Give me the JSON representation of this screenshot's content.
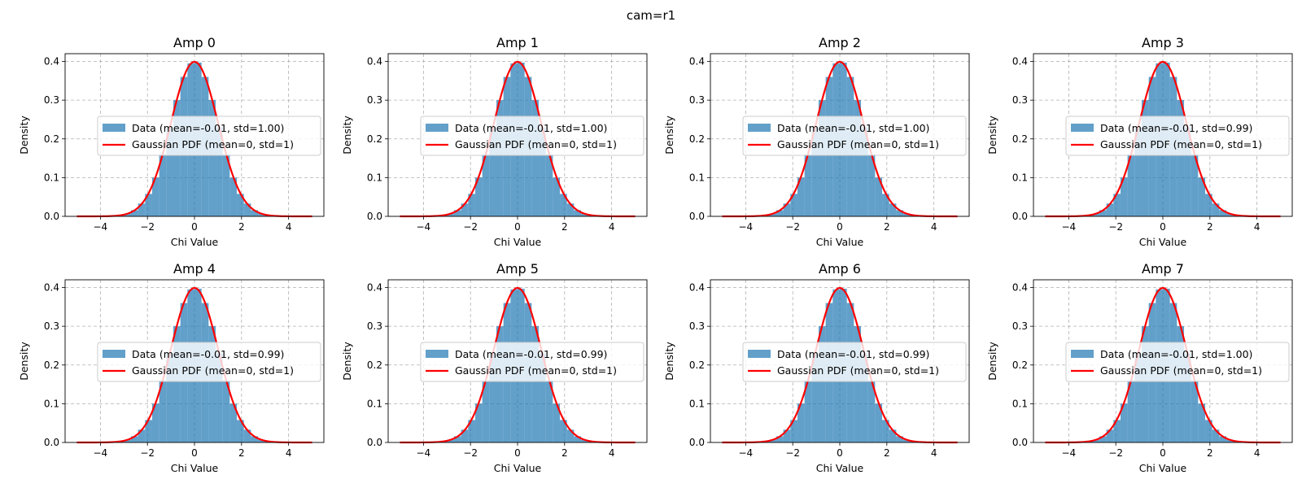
{
  "figure": {
    "title": "cam=r1"
  },
  "colors": {
    "histogram": "#1f77b4",
    "gaussian": "#ff0000",
    "grid": "#b0b0b0"
  },
  "chart_data": [
    {
      "type": "bar",
      "title": "Amp 0",
      "xlabel": "Chi Value",
      "ylabel": "Density",
      "xlim": [
        -5.5,
        5.5
      ],
      "ylim": [
        0,
        0.42
      ],
      "xticks": [
        -4,
        -2,
        0,
        2,
        4
      ],
      "yticks": [
        0.0,
        0.1,
        0.2,
        0.3,
        0.4
      ],
      "grid": true,
      "legend_position": "center right",
      "legend": [
        "Data (mean=-0.01, std=1.00)",
        "Gaussian PDF (mean=0, std=1)"
      ],
      "series": [
        {
          "name": "Data (mean=-0.01, std=1.00)",
          "type": "histogram",
          "bin_width": 0.3,
          "x": [
            -3.15,
            -2.85,
            -2.55,
            -2.25,
            -1.95,
            -1.65,
            -1.35,
            -1.05,
            -0.75,
            -0.45,
            -0.15,
            0.15,
            0.45,
            0.75,
            1.05,
            1.35,
            1.65,
            1.95,
            2.25,
            2.55,
            2.85,
            3.15
          ],
          "values": [
            0.003,
            0.007,
            0.016,
            0.033,
            0.058,
            0.1,
            0.16,
            0.23,
            0.3,
            0.36,
            0.395,
            0.397,
            0.36,
            0.3,
            0.23,
            0.16,
            0.1,
            0.058,
            0.033,
            0.016,
            0.007,
            0.003
          ]
        },
        {
          "name": "Gaussian PDF (mean=0, std=1)",
          "type": "line",
          "mean": 0,
          "std": 1,
          "x_range": [
            -5,
            5
          ]
        }
      ]
    },
    {
      "type": "bar",
      "title": "Amp 1",
      "xlabel": "Chi Value",
      "ylabel": "Density",
      "xlim": [
        -5.5,
        5.5
      ],
      "ylim": [
        0,
        0.42
      ],
      "xticks": [
        -4,
        -2,
        0,
        2,
        4
      ],
      "yticks": [
        0.0,
        0.1,
        0.2,
        0.3,
        0.4
      ],
      "grid": true,
      "legend_position": "center right",
      "legend": [
        "Data (mean=-0.01, std=1.00)",
        "Gaussian PDF (mean=0, std=1)"
      ],
      "series": [
        {
          "name": "Data (mean=-0.01, std=1.00)",
          "type": "histogram",
          "bin_width": 0.3,
          "x": [
            -3.15,
            -2.85,
            -2.55,
            -2.25,
            -1.95,
            -1.65,
            -1.35,
            -1.05,
            -0.75,
            -0.45,
            -0.15,
            0.15,
            0.45,
            0.75,
            1.05,
            1.35,
            1.65,
            1.95,
            2.25,
            2.55,
            2.85,
            3.15
          ],
          "values": [
            0.003,
            0.007,
            0.016,
            0.033,
            0.058,
            0.1,
            0.16,
            0.23,
            0.3,
            0.36,
            0.395,
            0.397,
            0.36,
            0.3,
            0.23,
            0.16,
            0.1,
            0.058,
            0.033,
            0.016,
            0.007,
            0.003
          ]
        },
        {
          "name": "Gaussian PDF (mean=0, std=1)",
          "type": "line",
          "mean": 0,
          "std": 1,
          "x_range": [
            -5,
            5
          ]
        }
      ]
    },
    {
      "type": "bar",
      "title": "Amp 2",
      "xlabel": "Chi Value",
      "ylabel": "Density",
      "xlim": [
        -5.5,
        5.5
      ],
      "ylim": [
        0,
        0.42
      ],
      "xticks": [
        -4,
        -2,
        0,
        2,
        4
      ],
      "yticks": [
        0.0,
        0.1,
        0.2,
        0.3,
        0.4
      ],
      "grid": true,
      "legend_position": "center right",
      "legend": [
        "Data (mean=-0.01, std=1.00)",
        "Gaussian PDF (mean=0, std=1)"
      ],
      "series": [
        {
          "name": "Data (mean=-0.01, std=1.00)",
          "type": "histogram",
          "bin_width": 0.3,
          "x": [
            -3.15,
            -2.85,
            -2.55,
            -2.25,
            -1.95,
            -1.65,
            -1.35,
            -1.05,
            -0.75,
            -0.45,
            -0.15,
            0.15,
            0.45,
            0.75,
            1.05,
            1.35,
            1.65,
            1.95,
            2.25,
            2.55,
            2.85,
            3.15
          ],
          "values": [
            0.003,
            0.007,
            0.016,
            0.033,
            0.058,
            0.1,
            0.16,
            0.23,
            0.3,
            0.36,
            0.395,
            0.397,
            0.36,
            0.3,
            0.23,
            0.16,
            0.1,
            0.058,
            0.033,
            0.016,
            0.007,
            0.003
          ]
        },
        {
          "name": "Gaussian PDF (mean=0, std=1)",
          "type": "line",
          "mean": 0,
          "std": 1,
          "x_range": [
            -5,
            5
          ]
        }
      ]
    },
    {
      "type": "bar",
      "title": "Amp 3",
      "xlabel": "Chi Value",
      "ylabel": "Density",
      "xlim": [
        -5.5,
        5.5
      ],
      "ylim": [
        0,
        0.42
      ],
      "xticks": [
        -4,
        -2,
        0,
        2,
        4
      ],
      "yticks": [
        0.0,
        0.1,
        0.2,
        0.3,
        0.4
      ],
      "grid": true,
      "legend_position": "center right",
      "legend": [
        "Data (mean=-0.01, std=0.99)",
        "Gaussian PDF (mean=0, std=1)"
      ],
      "series": [
        {
          "name": "Data (mean=-0.01, std=0.99)",
          "type": "histogram",
          "bin_width": 0.3,
          "x": [
            -3.15,
            -2.85,
            -2.55,
            -2.25,
            -1.95,
            -1.65,
            -1.35,
            -1.05,
            -0.75,
            -0.45,
            -0.15,
            0.15,
            0.45,
            0.75,
            1.05,
            1.35,
            1.65,
            1.95,
            2.25,
            2.55,
            2.85,
            3.15
          ],
          "values": [
            0.003,
            0.007,
            0.016,
            0.033,
            0.058,
            0.1,
            0.16,
            0.23,
            0.3,
            0.36,
            0.395,
            0.397,
            0.36,
            0.3,
            0.23,
            0.16,
            0.1,
            0.058,
            0.033,
            0.016,
            0.007,
            0.003
          ]
        },
        {
          "name": "Gaussian PDF (mean=0, std=1)",
          "type": "line",
          "mean": 0,
          "std": 1,
          "x_range": [
            -5,
            5
          ]
        }
      ]
    },
    {
      "type": "bar",
      "title": "Amp 4",
      "xlabel": "Chi Value",
      "ylabel": "Density",
      "xlim": [
        -5.5,
        5.5
      ],
      "ylim": [
        0,
        0.42
      ],
      "xticks": [
        -4,
        -2,
        0,
        2,
        4
      ],
      "yticks": [
        0.0,
        0.1,
        0.2,
        0.3,
        0.4
      ],
      "grid": true,
      "legend_position": "center right",
      "legend": [
        "Data (mean=-0.01, std=0.99)",
        "Gaussian PDF (mean=0, std=1)"
      ],
      "series": [
        {
          "name": "Data (mean=-0.01, std=0.99)",
          "type": "histogram",
          "bin_width": 0.3,
          "x": [
            -3.15,
            -2.85,
            -2.55,
            -2.25,
            -1.95,
            -1.65,
            -1.35,
            -1.05,
            -0.75,
            -0.45,
            -0.15,
            0.15,
            0.45,
            0.75,
            1.05,
            1.35,
            1.65,
            1.95,
            2.25,
            2.55,
            2.85,
            3.15
          ],
          "values": [
            0.003,
            0.007,
            0.016,
            0.033,
            0.058,
            0.1,
            0.16,
            0.23,
            0.3,
            0.36,
            0.395,
            0.397,
            0.36,
            0.3,
            0.23,
            0.16,
            0.1,
            0.058,
            0.033,
            0.016,
            0.007,
            0.003
          ]
        },
        {
          "name": "Gaussian PDF (mean=0, std=1)",
          "type": "line",
          "mean": 0,
          "std": 1,
          "x_range": [
            -5,
            5
          ]
        }
      ]
    },
    {
      "type": "bar",
      "title": "Amp 5",
      "xlabel": "Chi Value",
      "ylabel": "Density",
      "xlim": [
        -5.5,
        5.5
      ],
      "ylim": [
        0,
        0.42
      ],
      "xticks": [
        -4,
        -2,
        0,
        2,
        4
      ],
      "yticks": [
        0.0,
        0.1,
        0.2,
        0.3,
        0.4
      ],
      "grid": true,
      "legend_position": "center right",
      "legend": [
        "Data (mean=-0.01, std=0.99)",
        "Gaussian PDF (mean=0, std=1)"
      ],
      "series": [
        {
          "name": "Data (mean=-0.01, std=0.99)",
          "type": "histogram",
          "bin_width": 0.3,
          "x": [
            -3.15,
            -2.85,
            -2.55,
            -2.25,
            -1.95,
            -1.65,
            -1.35,
            -1.05,
            -0.75,
            -0.45,
            -0.15,
            0.15,
            0.45,
            0.75,
            1.05,
            1.35,
            1.65,
            1.95,
            2.25,
            2.55,
            2.85,
            3.15
          ],
          "values": [
            0.003,
            0.007,
            0.016,
            0.033,
            0.058,
            0.1,
            0.16,
            0.23,
            0.3,
            0.36,
            0.395,
            0.397,
            0.36,
            0.3,
            0.23,
            0.16,
            0.1,
            0.058,
            0.033,
            0.016,
            0.007,
            0.003
          ]
        },
        {
          "name": "Gaussian PDF (mean=0, std=1)",
          "type": "line",
          "mean": 0,
          "std": 1,
          "x_range": [
            -5,
            5
          ]
        }
      ]
    },
    {
      "type": "bar",
      "title": "Amp 6",
      "xlabel": "Chi Value",
      "ylabel": "Density",
      "xlim": [
        -5.5,
        5.5
      ],
      "ylim": [
        0,
        0.42
      ],
      "xticks": [
        -4,
        -2,
        0,
        2,
        4
      ],
      "yticks": [
        0.0,
        0.1,
        0.2,
        0.3,
        0.4
      ],
      "grid": true,
      "legend_position": "center right",
      "legend": [
        "Data (mean=-0.01, std=0.99)",
        "Gaussian PDF (mean=0, std=1)"
      ],
      "series": [
        {
          "name": "Data (mean=-0.01, std=0.99)",
          "type": "histogram",
          "bin_width": 0.3,
          "x": [
            -3.15,
            -2.85,
            -2.55,
            -2.25,
            -1.95,
            -1.65,
            -1.35,
            -1.05,
            -0.75,
            -0.45,
            -0.15,
            0.15,
            0.45,
            0.75,
            1.05,
            1.35,
            1.65,
            1.95,
            2.25,
            2.55,
            2.85,
            3.15
          ],
          "values": [
            0.003,
            0.007,
            0.016,
            0.033,
            0.058,
            0.1,
            0.16,
            0.23,
            0.3,
            0.36,
            0.395,
            0.397,
            0.36,
            0.3,
            0.23,
            0.16,
            0.1,
            0.058,
            0.033,
            0.016,
            0.007,
            0.003
          ]
        },
        {
          "name": "Gaussian PDF (mean=0, std=1)",
          "type": "line",
          "mean": 0,
          "std": 1,
          "x_range": [
            -5,
            5
          ]
        }
      ]
    },
    {
      "type": "bar",
      "title": "Amp 7",
      "xlabel": "Chi Value",
      "ylabel": "Density",
      "xlim": [
        -5.5,
        5.5
      ],
      "ylim": [
        0,
        0.42
      ],
      "xticks": [
        -4,
        -2,
        0,
        2,
        4
      ],
      "yticks": [
        0.0,
        0.1,
        0.2,
        0.3,
        0.4
      ],
      "grid": true,
      "legend_position": "center right",
      "legend": [
        "Data (mean=-0.01, std=1.00)",
        "Gaussian PDF (mean=0, std=1)"
      ],
      "series": [
        {
          "name": "Data (mean=-0.01, std=1.00)",
          "type": "histogram",
          "bin_width": 0.3,
          "x": [
            -3.15,
            -2.85,
            -2.55,
            -2.25,
            -1.95,
            -1.65,
            -1.35,
            -1.05,
            -0.75,
            -0.45,
            -0.15,
            0.15,
            0.45,
            0.75,
            1.05,
            1.35,
            1.65,
            1.95,
            2.25,
            2.55,
            2.85,
            3.15
          ],
          "values": [
            0.003,
            0.007,
            0.016,
            0.033,
            0.058,
            0.1,
            0.16,
            0.23,
            0.3,
            0.36,
            0.395,
            0.397,
            0.36,
            0.3,
            0.23,
            0.16,
            0.1,
            0.058,
            0.033,
            0.016,
            0.007,
            0.003
          ]
        },
        {
          "name": "Gaussian PDF (mean=0, std=1)",
          "type": "line",
          "mean": 0,
          "std": 1,
          "x_range": [
            -5,
            5
          ]
        }
      ]
    }
  ]
}
